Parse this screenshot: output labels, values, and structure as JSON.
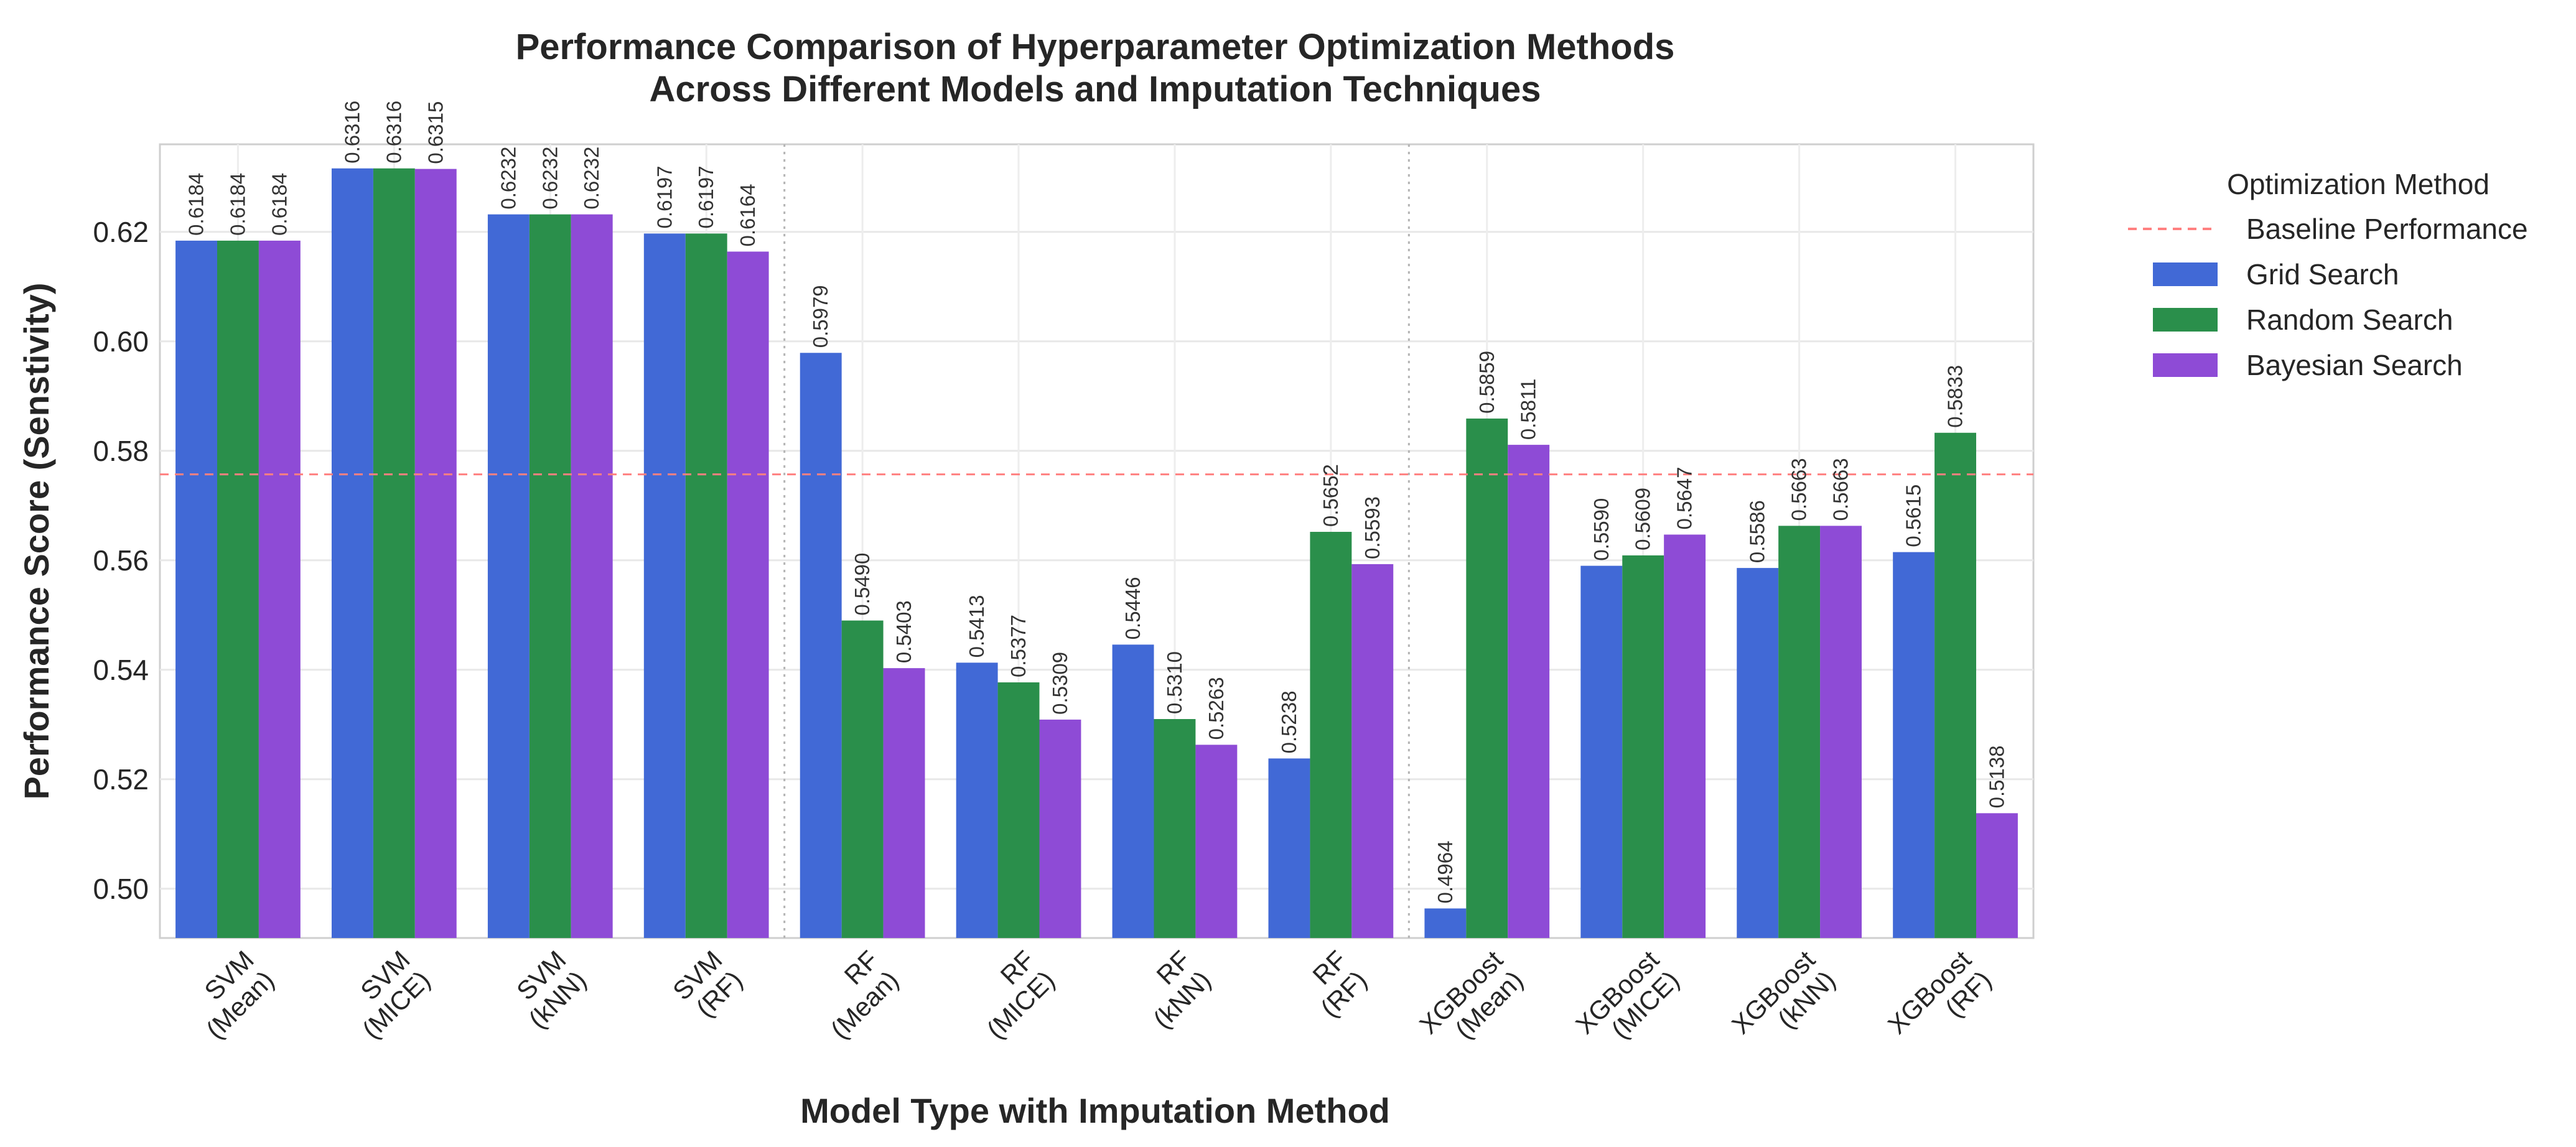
{
  "chart_data": {
    "type": "bar",
    "title_lines": [
      "Performance Comparison of Hyperparameter Optimization Methods",
      "Across Different Models and Imputation Techniques"
    ],
    "xlabel": "Model Type with Imputation Method",
    "ylabel": "Performance Score (Senstivity)",
    "ylim": [
      0.491,
      0.636
    ],
    "yticks": [
      0.5,
      0.52,
      0.54,
      0.56,
      0.58,
      0.6,
      0.62
    ],
    "ytick_labels": [
      "0.50",
      "0.52",
      "0.54",
      "0.56",
      "0.58",
      "0.60",
      "0.62"
    ],
    "grid": true,
    "categories": [
      [
        "SVM",
        "(Mean)"
      ],
      [
        "SVM",
        "(MICE)"
      ],
      [
        "SVM",
        "(kNN)"
      ],
      [
        "SVM",
        "(RF)"
      ],
      [
        "RF",
        "(Mean)"
      ],
      [
        "RF",
        "(MICE)"
      ],
      [
        "RF",
        "(kNN)"
      ],
      [
        "RF",
        "(RF)"
      ],
      [
        "XGBoost",
        "(Mean)"
      ],
      [
        "XGBoost",
        "(MICE)"
      ],
      [
        "XGBoost",
        "(kNN)"
      ],
      [
        "XGBoost",
        "(RF)"
      ]
    ],
    "group_separators_after": [
      3,
      7
    ],
    "baseline": {
      "name": "Baseline Performance",
      "value": 0.5757,
      "color": "#ff8080"
    },
    "series": [
      {
        "name": "Grid Search",
        "color": "#4169d6",
        "values": [
          0.6184,
          0.6316,
          0.6232,
          0.6197,
          0.5979,
          0.5413,
          0.5446,
          0.5238,
          0.4964,
          0.559,
          0.5586,
          0.5615
        ],
        "labels": [
          "0.6184",
          "0.6316",
          "0.6232",
          "0.6197",
          "0.5979",
          "0.5413",
          "0.5446",
          "0.5238",
          "0.4964",
          "0.5590",
          "0.5586",
          "0.5615"
        ]
      },
      {
        "name": "Random Search",
        "color": "#2a8f4b",
        "values": [
          0.6184,
          0.6316,
          0.6232,
          0.6197,
          0.549,
          0.5377,
          0.531,
          0.5652,
          0.5859,
          0.5609,
          0.5663,
          0.5833
        ],
        "labels": [
          "0.6184",
          "0.6316",
          "0.6232",
          "0.6197",
          "0.5490",
          "0.5377",
          "0.5310",
          "0.5652",
          "0.5859",
          "0.5609",
          "0.5663",
          "0.5833"
        ]
      },
      {
        "name": "Bayesian Search",
        "color": "#8e4bd6",
        "values": [
          0.6184,
          0.6315,
          0.6232,
          0.6164,
          0.5403,
          0.5309,
          0.5263,
          0.5593,
          0.5811,
          0.5647,
          0.5663,
          0.5138
        ],
        "labels": [
          "0.6184",
          "0.6315",
          "0.6232",
          "0.6164",
          "0.5403",
          "0.5309",
          "0.5263",
          "0.5593",
          "0.5811",
          "0.5647",
          "0.5663",
          "0.5138"
        ]
      }
    ],
    "legend": {
      "title": "Optimization Method",
      "position": "outside-right-top"
    }
  }
}
